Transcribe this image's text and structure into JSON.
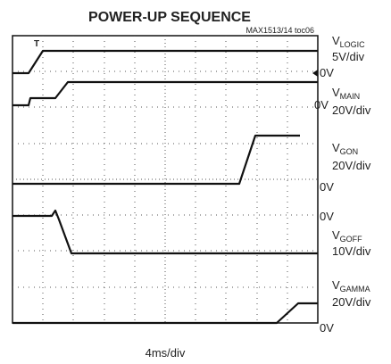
{
  "title": "POWER-UP SEQUENCE",
  "figure_id": "MAX1513/14 toc06",
  "time_scale": "4ms/div",
  "channels": [
    {
      "symbol": "V",
      "subscript": "LOGIC",
      "scale": "5V/div",
      "ground": "0V"
    },
    {
      "symbol": "V",
      "subscript": "MAIN",
      "scale": "20V/div",
      "ground": "0V"
    },
    {
      "symbol": "V",
      "subscript": "GON",
      "scale": "20V/div",
      "ground": "0V"
    },
    {
      "symbol": "V",
      "subscript": "GOFF",
      "scale": "10V/div",
      "ground": "0V"
    },
    {
      "symbol": "V",
      "subscript": "GAMMA",
      "scale": "20V/div",
      "ground": "0V"
    }
  ]
}
